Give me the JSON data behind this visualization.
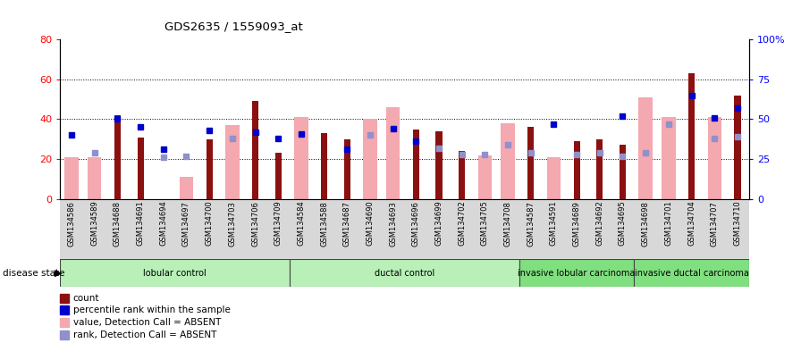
{
  "title": "GDS2635 / 1559093_at",
  "samples": [
    "GSM134586",
    "GSM134589",
    "GSM134688",
    "GSM134691",
    "GSM134694",
    "GSM134697",
    "GSM134700",
    "GSM134703",
    "GSM134706",
    "GSM134709",
    "GSM134584",
    "GSM134588",
    "GSM134687",
    "GSM134690",
    "GSM134693",
    "GSM134696",
    "GSM134699",
    "GSM134702",
    "GSM134705",
    "GSM134708",
    "GSM134587",
    "GSM134591",
    "GSM134689",
    "GSM134692",
    "GSM134695",
    "GSM134698",
    "GSM134701",
    "GSM134704",
    "GSM134707",
    "GSM134710"
  ],
  "count": [
    0,
    0,
    42,
    31,
    0,
    0,
    30,
    0,
    49,
    23,
    0,
    33,
    30,
    0,
    0,
    35,
    34,
    24,
    0,
    0,
    36,
    0,
    29,
    30,
    27,
    0,
    0,
    63,
    0,
    52
  ],
  "value_absent": [
    21,
    21,
    0,
    0,
    0,
    11,
    0,
    37,
    0,
    0,
    41,
    0,
    0,
    40,
    46,
    0,
    0,
    0,
    22,
    38,
    0,
    21,
    0,
    0,
    0,
    51,
    41,
    0,
    41,
    0
  ],
  "percentile_rank": [
    40,
    0,
    50,
    45,
    31,
    0,
    43,
    0,
    42,
    38,
    41,
    0,
    31,
    0,
    44,
    36,
    0,
    0,
    0,
    0,
    0,
    47,
    0,
    0,
    52,
    0,
    0,
    65,
    51,
    57
  ],
  "rank_absent": [
    0,
    29,
    0,
    0,
    26,
    27,
    0,
    38,
    0,
    0,
    0,
    0,
    0,
    40,
    0,
    0,
    32,
    28,
    28,
    34,
    29,
    0,
    28,
    29,
    27,
    29,
    47,
    0,
    38,
    39
  ],
  "groups": [
    {
      "label": "lobular control",
      "start": 0,
      "end": 10,
      "color": "#b8f0b8"
    },
    {
      "label": "ductal control",
      "start": 10,
      "end": 20,
      "color": "#b8f0b8"
    },
    {
      "label": "invasive lobular carcinoma",
      "start": 20,
      "end": 25,
      "color": "#80e080"
    },
    {
      "label": "invasive ductal carcinoma",
      "start": 25,
      "end": 30,
      "color": "#80e080"
    }
  ],
  "ylim_left": [
    0,
    80
  ],
  "ylim_right": [
    0,
    100
  ],
  "yticks_left": [
    0,
    20,
    40,
    60,
    80
  ],
  "yticks_right_vals": [
    0,
    25,
    50,
    75,
    100
  ],
  "yticks_right_labels": [
    "0",
    "25",
    "50",
    "75",
    "100%"
  ],
  "count_color": "#8b1010",
  "value_absent_color": "#f4a8b0",
  "percentile_color": "#0000cc",
  "rank_absent_color": "#9090cc",
  "tick_bg_color": "#d8d8d8",
  "legend_colors": [
    "#8b1010",
    "#0000cc",
    "#f4a8b0",
    "#9090cc"
  ],
  "legend_labels": [
    "count",
    "percentile rank within the sample",
    "value, Detection Call = ABSENT",
    "rank, Detection Call = ABSENT"
  ]
}
